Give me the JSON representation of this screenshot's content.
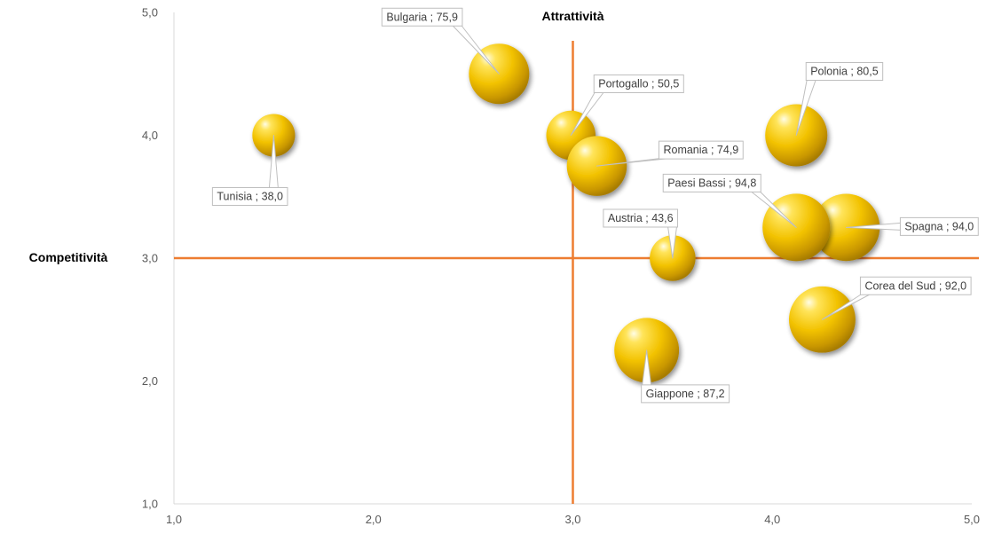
{
  "chart_data": {
    "type": "bubble",
    "title": "",
    "xlabel": "Attrattività",
    "ylabel": "Competitività",
    "xlim": [
      1.0,
      5.0
    ],
    "ylim": [
      1.0,
      5.0
    ],
    "x_ticks": [
      "1,0",
      "2,0",
      "3,0",
      "4,0",
      "5,0"
    ],
    "y_ticks": [
      "1,0",
      "2,0",
      "3,0",
      "4,0",
      "5,0"
    ],
    "x_ticks_values": [
      1,
      2,
      3,
      4,
      5
    ],
    "y_ticks_values": [
      1,
      2,
      3,
      4,
      5
    ],
    "grid": false,
    "reference_lines": {
      "x": 3.0,
      "y": 3.0,
      "color": "#ED7D31"
    },
    "bubble_color": "#F2C200",
    "points": [
      {
        "name": "Tunisia",
        "x": 1.5,
        "y": 4.0,
        "size": 38.0,
        "label": "Tunisia ; 38,0"
      },
      {
        "name": "Bulgaria",
        "x": 2.63,
        "y": 4.5,
        "size": 75.9,
        "label": "Bulgaria ; 75,9"
      },
      {
        "name": "Portogallo",
        "x": 2.99,
        "y": 4.0,
        "size": 50.5,
        "label": "Portogallo ; 50,5"
      },
      {
        "name": "Romania",
        "x": 3.12,
        "y": 3.75,
        "size": 74.9,
        "label": "Romania ; 74,9"
      },
      {
        "name": "Austria",
        "x": 3.5,
        "y": 3.0,
        "size": 43.6,
        "label": "Austria ; 43,6"
      },
      {
        "name": "Giappone",
        "x": 3.37,
        "y": 2.25,
        "size": 87.2,
        "label": "Giappone ; 87,2"
      },
      {
        "name": "Polonia",
        "x": 4.12,
        "y": 4.0,
        "size": 80.5,
        "label": "Polonia ; 80,5"
      },
      {
        "name": "Paesi Bassi",
        "x": 4.12,
        "y": 3.25,
        "size": 94.8,
        "label": "Paesi Bassi ; 94,8"
      },
      {
        "name": "Spagna",
        "x": 4.37,
        "y": 3.25,
        "size": 94.0,
        "label": "Spagna ; 94,0"
      },
      {
        "name": "Corea del Sud",
        "x": 4.25,
        "y": 2.5,
        "size": 92.0,
        "label": "Corea del Sud ; 92,0"
      }
    ]
  }
}
